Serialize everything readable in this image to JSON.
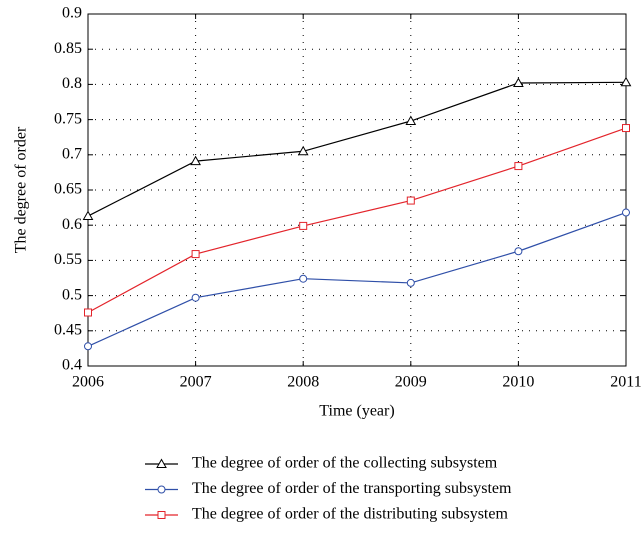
{
  "chart_data": {
    "type": "line",
    "xlabel": "Time (year)",
    "ylabel": "The degree of order",
    "x": [
      2006,
      2007,
      2008,
      2009,
      2010,
      2011
    ],
    "series": [
      {
        "name": "The degree of order of the collecting subsystem",
        "color": "#000000",
        "marker": "triangle",
        "values": [
          0.613,
          0.691,
          0.705,
          0.748,
          0.802,
          0.803
        ]
      },
      {
        "name": "The degree of order of the transporting subsystem",
        "color": "#2f4fa8",
        "marker": "circle",
        "values": [
          0.428,
          0.497,
          0.524,
          0.518,
          0.563,
          0.618
        ]
      },
      {
        "name": "The degree of order of the distributing subsystem",
        "color": "#e3242b",
        "marker": "square",
        "values": [
          0.476,
          0.559,
          0.599,
          0.635,
          0.684,
          0.738
        ]
      }
    ],
    "xlim": [
      2006,
      2011
    ],
    "xticks": [
      2006,
      2007,
      2008,
      2009,
      2010,
      2011
    ],
    "ylim": [
      0.4,
      0.9
    ],
    "yticks": [
      0.4,
      0.45,
      0.5,
      0.55,
      0.6,
      0.65,
      0.7,
      0.75,
      0.8,
      0.85,
      0.9
    ],
    "grid": true,
    "legend": "bottom"
  }
}
